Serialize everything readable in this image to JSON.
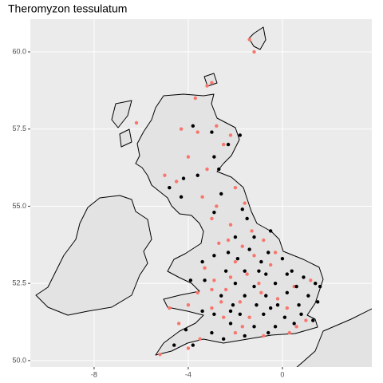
{
  "chart_data": {
    "type": "scatter",
    "title": "Theromyzon tessulatum",
    "xlim": [
      -10.71,
      3.8
    ],
    "ylim": [
      49.79,
      61.06
    ],
    "xticks": [
      -8,
      -4,
      0
    ],
    "yticks": [
      {
        "value": 50,
        "label": "50.0"
      },
      52.5,
      {
        "value": 55,
        "label": "55.0"
      },
      57.5,
      {
        "value": 60,
        "label": "60.0"
      }
    ],
    "grid": true,
    "series": [
      {
        "color": "#F8766D",
        "x": [
          -1.2,
          -1.4,
          -3.0,
          -3.2,
          -3.7,
          -6.2,
          -4.3,
          -2.2,
          -2.8,
          -3.6,
          -2.5,
          -4.0,
          -3.2,
          -5.0,
          -4.5,
          -2.0,
          -3.4,
          -2.8,
          -1.6,
          -3.0,
          -2.2,
          -1.3,
          -2.7,
          -1.7,
          -0.8,
          -3.3,
          -2.9,
          -2.2,
          -1.5,
          -0.5,
          -3.6,
          -2.4,
          -4.0,
          -3.0,
          -1.8,
          -0.9,
          0.5,
          -4.8,
          -4.4,
          -2.5,
          -1.4,
          0.2,
          1.0,
          -3.5,
          -2.0,
          -0.8,
          0.3,
          -5.2,
          -4.0,
          1.2,
          -0.2,
          -2.0,
          -1.0,
          -2.6,
          -1.7,
          0.6,
          -1.2,
          -0.3,
          -2.3,
          -3.0
        ],
        "values": [
          60.0,
          60.4,
          59.0,
          58.9,
          58.5,
          57.7,
          57.5,
          57.3,
          57.6,
          57.4,
          57.0,
          56.6,
          56.2,
          56.0,
          55.8,
          55.6,
          55.3,
          55.0,
          55.1,
          54.6,
          54.4,
          54.2,
          53.8,
          53.7,
          53.9,
          53.0,
          52.6,
          52.7,
          52.8,
          53.1,
          52.2,
          52.3,
          51.8,
          51.7,
          51.9,
          52.2,
          52.4,
          51.7,
          51.2,
          51.4,
          51.4,
          51.7,
          51.3,
          50.7,
          50.9,
          50.8,
          50.9,
          50.2,
          50.4,
          52.6,
          52.0,
          53.2,
          52.5,
          51.9,
          51.1,
          51.1,
          53.4,
          53.5,
          53.9,
          52.3
        ]
      },
      {
        "color": "#000000",
        "x": [
          -1.8,
          -2.3,
          -3.0,
          -2.9,
          -3.6,
          -4.2,
          -2.6,
          -1.7,
          -2.9,
          -1.5,
          -1.2,
          -0.5,
          -2.0,
          -1.4,
          -0.6,
          -1.9,
          -0.9,
          0.0,
          -2.4,
          -1.6,
          -0.7,
          0.2,
          0.9,
          1.4,
          -2.0,
          -1.2,
          -0.3,
          0.6,
          1.6,
          -2.6,
          -1.6,
          -0.7,
          0.2,
          1.1,
          1.5,
          -2.1,
          -1.1,
          -0.2,
          0.7,
          -2.9,
          -1.8,
          -0.8,
          0.1,
          0.8,
          1.3,
          -3.4,
          -2.2,
          -1.2,
          -0.3,
          0.5,
          -3.0,
          -1.6,
          -0.6,
          -4.1,
          -3.8,
          -2.5,
          -4.6,
          -3.4,
          -2.9,
          -3.3,
          -3.9,
          0.4,
          -1.0,
          -2.2,
          -0.5,
          -4.3,
          -3.8,
          -2.7,
          -4.8,
          -2.3
        ],
        "values": [
          57.3,
          57.0,
          57.4,
          56.6,
          56.0,
          55.9,
          55.4,
          54.9,
          54.8,
          54.6,
          54.0,
          54.2,
          54.0,
          53.6,
          53.5,
          53.3,
          53.2,
          53.3,
          52.9,
          52.9,
          52.8,
          52.8,
          52.7,
          52.5,
          52.5,
          52.4,
          52.5,
          52.4,
          52.4,
          52.1,
          52.1,
          52.1,
          52.2,
          52.1,
          51.9,
          51.8,
          51.8,
          51.8,
          51.8,
          51.5,
          51.5,
          51.5,
          51.4,
          51.5,
          51.3,
          51.6,
          51.2,
          51.1,
          51.1,
          51.2,
          50.9,
          50.8,
          50.9,
          51.0,
          50.5,
          50.7,
          50.5,
          53.2,
          53.4,
          52.6,
          52.6,
          52.9,
          52.9,
          51.6,
          51.7,
          55.3,
          57.6,
          56.2,
          55.6,
          53.5
        ]
      }
    ]
  }
}
